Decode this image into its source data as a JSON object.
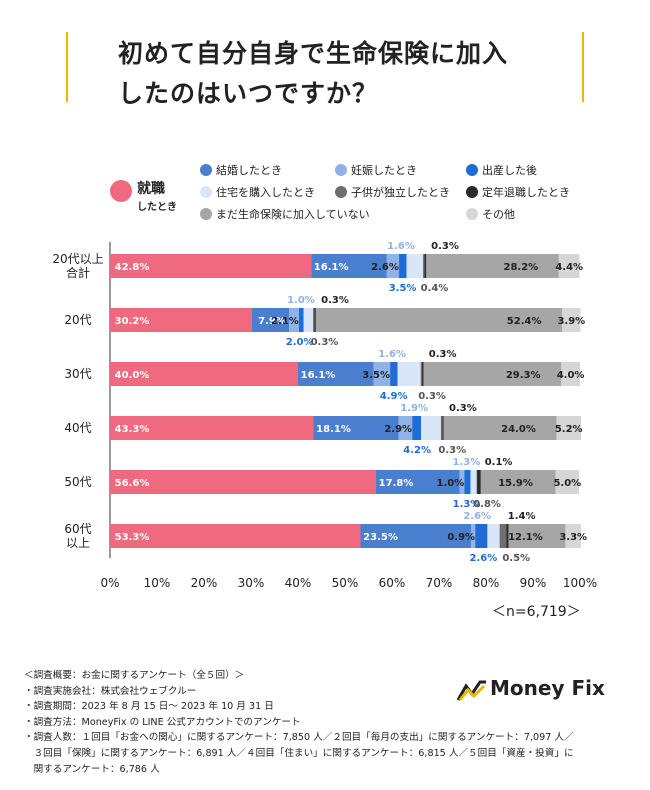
{
  "title": {
    "line1": "初めて自分自身で生命保険に加入",
    "line2": "したのはいつですか？"
  },
  "legend_key": {
    "line1": "就職",
    "line2": "したとき"
  },
  "chart_data": {
    "type": "bar",
    "orientation": "horizontal",
    "stacked": true,
    "title": "初めて自分自身で生命保険に加入したのはいつですか？",
    "categories": [
      "20代以上\n合計",
      "20代",
      "30代",
      "40代",
      "50代",
      "60代\n以上"
    ],
    "xlim": [
      0,
      100
    ],
    "xticks": [
      "0%",
      "10%",
      "20%",
      "30%",
      "40%",
      "50%",
      "60%",
      "70%",
      "80%",
      "90%",
      "100%"
    ],
    "series": [
      {
        "name": "就職したとき",
        "color": "#ef6a7e",
        "values": [
          42.8,
          30.2,
          40.0,
          43.3,
          56.6,
          53.3
        ],
        "labels": [
          "42.8%",
          "30.2%",
          "40.0%",
          "43.3%",
          "56.6%",
          "53.3%"
        ]
      },
      {
        "name": "結婚したとき",
        "color": "#4a7fd0",
        "values": [
          16.1,
          7.9,
          16.1,
          18.1,
          17.8,
          23.5
        ],
        "labels": [
          "16.1%",
          "7.9%",
          "16.1%",
          "18.1%",
          "17.8%",
          "23.5%"
        ]
      },
      {
        "name": "妊娠したとき",
        "color": "#8fb3e6",
        "values": [
          2.6,
          2.1,
          3.5,
          2.9,
          1.0,
          0.9
        ],
        "labels": [
          "2.6%",
          "2.1%",
          "3.5%",
          "2.9%",
          "1.0%",
          "0.9%"
        ]
      },
      {
        "name": "出産した後",
        "color": "#1f6cd6",
        "values": [
          1.6,
          1.0,
          1.6,
          1.9,
          1.3,
          2.6
        ],
        "labels": [
          "1.6%",
          "1.0%",
          "1.6%",
          "1.9%",
          "1.3%",
          "2.6%"
        ]
      },
      {
        "name": "住宅を購入したとき",
        "color": "#d9e6f7",
        "values": [
          3.5,
          2.0,
          4.9,
          4.2,
          1.3,
          2.6
        ],
        "labels": [
          "3.5%",
          "2.0%",
          "4.9%",
          "4.2%",
          "1.3%",
          "2.6%"
        ]
      },
      {
        "name": "子供が独立したとき",
        "color": "#6e6e6e",
        "values": [
          0.3,
          0.3,
          0.3,
          0.3,
          0.1,
          1.4
        ],
        "labels": [
          "0.3%",
          "0.3%",
          "0.3%",
          "0.3%",
          "0.1%",
          "1.4%"
        ]
      },
      {
        "name": "定年退職したとき",
        "color": "#2b2b2b",
        "values": [
          0.4,
          0.3,
          0.3,
          0.3,
          0.8,
          0.5
        ],
        "labels": [
          "0.4%",
          "0.3%",
          "0.3%",
          "0.3%",
          "0.8%",
          "0.5%"
        ]
      },
      {
        "name": "まだ生命保険に加入していない",
        "color": "#a6a6a6",
        "values": [
          28.2,
          52.4,
          29.3,
          24.0,
          15.9,
          12.1
        ],
        "labels": [
          "28.2%",
          "52.4%",
          "29.3%",
          "24.0%",
          "15.9%",
          "12.1%"
        ]
      },
      {
        "name": "その他",
        "color": "#d6d6d6",
        "values": [
          4.4,
          3.9,
          4.0,
          5.2,
          5.0,
          3.3
        ],
        "labels": [
          "4.4%",
          "3.9%",
          "4.0%",
          "5.2%",
          "5.0%",
          "3.3%"
        ]
      }
    ],
    "n_label": "＜n=6,719＞"
  },
  "legend_items": [
    {
      "label": "結婚したとき",
      "color": "#4a7fd0"
    },
    {
      "label": "妊娠したとき",
      "color": "#8fb3e6"
    },
    {
      "label": "出産した後",
      "color": "#1f6cd6"
    },
    {
      "label": "住宅を購入したとき",
      "color": "#d9e6f7"
    },
    {
      "label": "子供が独立したとき",
      "color": "#6e6e6e"
    },
    {
      "label": "定年退職したとき",
      "color": "#2b2b2b"
    },
    {
      "label": "まだ生命保険に加入していない",
      "color": "#a6a6a6"
    },
    {
      "label": "その他",
      "color": "#d6d6d6"
    }
  ],
  "notes": [
    "＜調査概要：お金に関するアンケート（全５回）＞",
    "・調査実施会社：株式会社ウェブクルー",
    "・調査期間：2023 年 8 月 15 日～ 2023 年 10 月 31 日",
    "・調査方法：MoneyFix の LINE 公式アカウントでのアンケート",
    "・調査人数：１回目「お金への関心」に関するアンケート：7,850 人／２回目「毎月の支出」に関するアンケート：7,097 人／",
    "　３回目「保険」に関するアンケート：6,891 人／４回目「住まい」に関するアンケート：6,815 人／５回目「資産・投資」に",
    "　関するアンケート：6,786 人"
  ],
  "logo": {
    "text": "Money Fix"
  }
}
